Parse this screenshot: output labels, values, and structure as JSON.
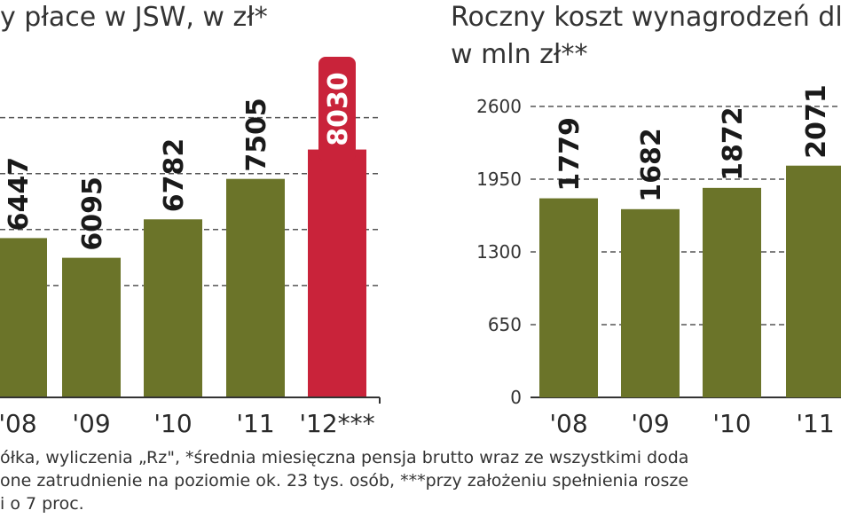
{
  "left": {
    "title": "y płace w JSW, w zł*",
    "chart_data": {
      "type": "bar",
      "categories": [
        "'08",
        "'09",
        "'10",
        "'11",
        "'12***"
      ],
      "values": [
        6447,
        6095,
        6782,
        7505,
        8030
      ],
      "highlight_index": 4,
      "ylim": [
        3600,
        8800
      ],
      "gridlines": [
        5600,
        6600,
        7600,
        8600
      ],
      "colors": {
        "bar": "#6b7429",
        "highlight": "#c9233a",
        "grid": "#555555",
        "axis": "#333333"
      }
    }
  },
  "right": {
    "title_line1": "Roczny koszt wynagrodzeń dl",
    "title_line2": "w mln zł**",
    "chart_data": {
      "type": "bar",
      "categories": [
        "'08",
        "'09",
        "'10",
        "'11"
      ],
      "values": [
        1779,
        1682,
        1872,
        2071
      ],
      "yticks": [
        "0",
        "650",
        "1300",
        "1950",
        "2600"
      ],
      "ylim": [
        0,
        2600
      ],
      "colors": {
        "bar": "#6b7429",
        "grid": "#555555",
        "axis": "#333333"
      }
    }
  },
  "footnotes": [
    "ółka, wyliczenia „Rz\", *średnia miesięczna pensja brutto wraz ze wszystkimi doda",
    "one zatrudnienie na poziomie ok. 23 tys. osób, ***przy założeniu spełnienia rosze",
    "i o 7 proc."
  ]
}
